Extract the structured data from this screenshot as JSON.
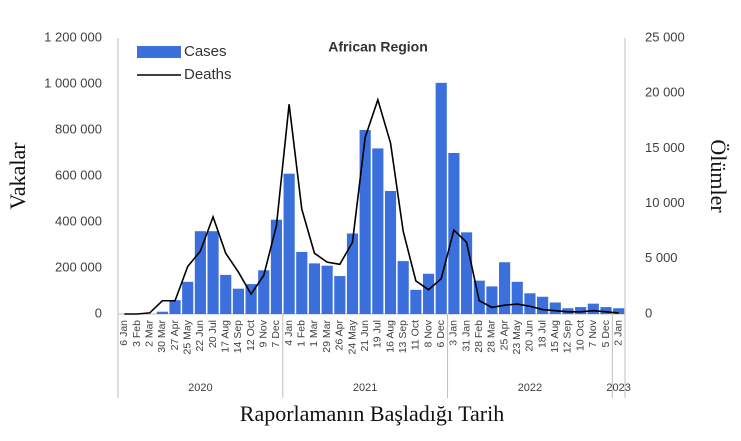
{
  "chart_data": {
    "type": "bar-line",
    "title": "African Region",
    "y_label": "Vakalar",
    "y2_label": "Ölümler",
    "x_label": "Raporlamanın Başladığı Tarih",
    "groups": [
      {
        "label": "2020",
        "categories": [
          "6 Jan",
          "3 Feb",
          "2 Mar",
          "30 Mar",
          "27 Apr",
          "25 May",
          "22 Jun",
          "20 Jul",
          "17 Aug",
          "14 Sep",
          "12 Oct",
          "9 Nov",
          "7 Dec"
        ]
      },
      {
        "label": "2021",
        "categories": [
          "4 Jan",
          "1 Feb",
          "1 Mar",
          "29 Mar",
          "26 Apr",
          "24 May",
          "21 Jun",
          "19 Jul",
          "16 Aug",
          "13 Sep",
          "11 Oct",
          "8 Nov",
          "6 Dec"
        ]
      },
      {
        "label": "2022",
        "categories": [
          "3 Jan",
          "31 Jan",
          "28 Feb",
          "28 Mar",
          "25 Apr",
          "23 May",
          "20 Jun",
          "18 Jul",
          "15 Aug",
          "12 Sep",
          "10 Oct",
          "7 Nov",
          "5 Dec"
        ]
      },
      {
        "label": "2023",
        "categories": [
          "2 Jan"
        ]
      }
    ],
    "series": [
      {
        "name": "Cases",
        "type": "bar",
        "color": "#3b6fdc",
        "values": [
          0,
          0,
          0,
          10000,
          60000,
          140000,
          360000,
          360000,
          170000,
          110000,
          130000,
          190000,
          410000,
          610000,
          270000,
          220000,
          210000,
          165000,
          350000,
          800000,
          720000,
          535000,
          230000,
          105000,
          175000,
          1005000,
          700000,
          355000,
          145000,
          120000,
          225000,
          140000,
          90000,
          75000,
          50000,
          25000,
          30000,
          45000,
          30000,
          25000
        ]
      },
      {
        "name": "Deaths",
        "type": "line",
        "axis": "y2",
        "color": "#000000",
        "values": [
          0,
          0,
          100,
          1200,
          1200,
          4300,
          5700,
          8800,
          5500,
          3800,
          1800,
          3500,
          8000,
          19000,
          9500,
          5500,
          4700,
          4500,
          6500,
          16000,
          19400,
          15500,
          7500,
          3000,
          2200,
          3200,
          7600,
          6500,
          1200,
          600,
          800,
          900,
          700,
          400,
          300,
          200,
          200,
          300,
          200,
          100
        ]
      }
    ],
    "ylim": [
      0,
      1200000
    ],
    "yticks": [
      0,
      {
        "value": 200000,
        "label": "200 000"
      },
      {
        "value": 400000,
        "label": "400 000"
      },
      {
        "value": 600000,
        "label": "600 000"
      },
      {
        "value": 800000,
        "label": "800 000"
      },
      {
        "value": 1000000,
        "label": "1 000 000"
      },
      {
        "value": 1200000,
        "label": "1 200 000"
      }
    ],
    "y2lim": [
      0,
      25000
    ],
    "y2ticks": [
      0,
      {
        "value": 5000,
        "label": "5 000"
      },
      {
        "value": 10000,
        "label": "10 000"
      },
      {
        "value": 15000,
        "label": "15 000"
      },
      {
        "value": 20000,
        "label": "20 000"
      },
      {
        "value": 25000,
        "label": "25 000"
      }
    ],
    "legend": "top-left",
    "grid": false
  }
}
